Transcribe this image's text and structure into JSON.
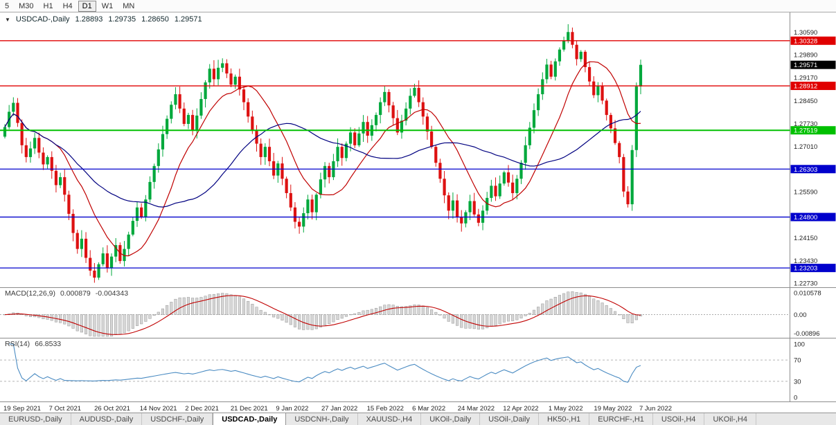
{
  "toolbar": {
    "timeframes": [
      "5",
      "M30",
      "H1",
      "H4",
      "D1",
      "W1",
      "MN"
    ],
    "active": "D1"
  },
  "chart": {
    "title": "USDCAD-,Daily",
    "open": "1.28893",
    "high": "1.29735",
    "low": "1.28650",
    "close": "1.29571",
    "price_axis_ticks": [
      "1.30590",
      "1.29890",
      "1.29170",
      "1.28450",
      "1.27730",
      "1.27010",
      "1.25590",
      "1.24150",
      "1.23430",
      "1.22730"
    ],
    "levels": [
      {
        "price": 1.30328,
        "label": "1.30328",
        "color": "#e00000",
        "width": 1.3
      },
      {
        "price": 1.28912,
        "label": "1.28912",
        "color": "#e00000",
        "width": 1.3
      },
      {
        "price": 1.27519,
        "label": "1.27519",
        "color": "#00c000",
        "width": 2
      },
      {
        "price": 1.26303,
        "label": "1.26303",
        "color": "#0000cc",
        "width": 1.3
      },
      {
        "price": 1.248,
        "label": "1.24800",
        "color": "#0000cc",
        "width": 1.3
      },
      {
        "price": 1.23203,
        "label": "1.23203",
        "color": "#0000cc",
        "width": 1.3
      }
    ],
    "current_price_tag": {
      "price": 1.29571,
      "label": "1.29571",
      "color": "#000000"
    }
  },
  "macd": {
    "name": "MACD(12,26,9)",
    "value_main": "0.000879",
    "value_signal": "-0.004343",
    "axis_ticks": [
      "0.010578",
      "0.00",
      "-0.00896"
    ]
  },
  "rsi": {
    "name": "RSI(14)",
    "value": "66.8533",
    "axis_ticks": [
      "100",
      "70",
      "30",
      "0"
    ]
  },
  "tabs": [
    {
      "label": "EURUSD-,Daily",
      "active": false
    },
    {
      "label": "AUDUSD-,Daily",
      "active": false
    },
    {
      "label": "USDCHF-,Daily",
      "active": false
    },
    {
      "label": "USDCAD-,Daily",
      "active": true
    },
    {
      "label": "USDCNH-,Daily",
      "active": false
    },
    {
      "label": "XAUUSD-,H4",
      "active": false
    },
    {
      "label": "UKOil-,Daily",
      "active": false
    },
    {
      "label": "USOil-,Daily",
      "active": false
    },
    {
      "label": "HK50-,H1",
      "active": false
    },
    {
      "label": "EURCHF-,H1",
      "active": false
    },
    {
      "label": "USOil-,H4",
      "active": false
    },
    {
      "label": "UKOil-,H4",
      "active": false
    }
  ],
  "colors": {
    "candle_up": "#00a83c",
    "candle_down": "#dd1111",
    "ma_fast": "#c00000",
    "ma_slow": "#000080",
    "macd_hist_fill": "#d6d6d6",
    "macd_hist_stroke": "#979797",
    "macd_signal": "#c00000",
    "rsi_line": "#4a8bc2",
    "separator": "#8c8c8c",
    "axis_text": "#1f1f1f"
  },
  "chart_data": {
    "type": "candlestick",
    "symbol": "USDCAD",
    "timeframe": "Daily",
    "dates": [
      "19 Sep 2021",
      "7 Oct 2021",
      "26 Oct 2021",
      "14 Nov 2021",
      "2 Dec 2021",
      "21 Dec 2021",
      "9 Jan 2022",
      "27 Jan 2022",
      "15 Feb 2022",
      "6 Mar 2022",
      "24 Mar 2022",
      "12 Apr 2022",
      "1 May 2022",
      "19 May 2022",
      "7 Jun 2022"
    ],
    "price_range_view": {
      "top": 1.3117,
      "bottom": 1.2262
    },
    "closes": [
      1.2762,
      1.281,
      1.2838,
      1.2775,
      1.2705,
      1.2668,
      1.2695,
      1.2728,
      1.2682,
      1.2645,
      1.2668,
      1.2625,
      1.258,
      1.2605,
      1.255,
      1.249,
      1.243,
      1.238,
      1.2412,
      1.2352,
      1.2312,
      1.229,
      1.2332,
      1.2366,
      1.232,
      1.2356,
      1.2392,
      1.2342,
      1.238,
      1.2425,
      1.2468,
      1.251,
      1.248,
      1.2535,
      1.259,
      1.264,
      1.2692,
      1.274,
      1.2788,
      1.2832,
      1.2865,
      1.282,
      1.2772,
      1.28,
      1.2752,
      1.2798,
      1.285,
      1.2902,
      1.2945,
      1.2912,
      1.2948,
      1.2962,
      1.293,
      1.2895,
      1.292,
      1.288,
      1.284,
      1.2795,
      1.275,
      1.271,
      1.2668,
      1.27,
      1.2655,
      1.261,
      1.2648,
      1.26,
      1.2555,
      1.251,
      1.2465,
      1.245,
      1.2492,
      1.2535,
      1.2495,
      1.255,
      1.2598,
      1.264,
      1.2605,
      1.2655,
      1.27,
      1.2665,
      1.271,
      1.2745,
      1.2705,
      1.2742,
      1.2778,
      1.2735,
      1.2768,
      1.28,
      1.284,
      1.2872,
      1.283,
      1.279,
      1.2745,
      1.2782,
      1.282,
      1.286,
      1.2885,
      1.284,
      1.2795,
      1.2748,
      1.27,
      1.265,
      1.26,
      1.2548,
      1.25,
      1.2532,
      1.248,
      1.246,
      1.2495,
      1.253,
      1.2488,
      1.2462,
      1.25,
      1.254,
      1.2578,
      1.2545,
      1.2585,
      1.262,
      1.2588,
      1.2555,
      1.26,
      1.265,
      1.2705,
      1.276,
      1.2815,
      1.2865,
      1.2912,
      1.2958,
      1.292,
      1.2968,
      1.3005,
      1.3032,
      1.306,
      1.302,
      1.2975,
      1.2998,
      1.295,
      1.2905,
      1.2862,
      1.289,
      1.2845,
      1.28,
      1.2758,
      1.2712,
      1.2668,
      1.256,
      1.252,
      1.269,
      1.28893,
      1.29571
    ],
    "last_candle": {
      "open": 1.28893,
      "high": 1.29735,
      "low": 1.2865,
      "close": 1.29571
    },
    "overlays": [
      {
        "name": "sma-fast",
        "period": 13,
        "color": "#c00000"
      },
      {
        "name": "sma-slow",
        "period": 34,
        "color": "#000080"
      }
    ],
    "macd": {
      "fast": 12,
      "slow": 26,
      "signal": 9,
      "view_min": -0.0105,
      "view_max": 0.0115
    },
    "rsi": {
      "period": 14,
      "levels": [
        70,
        30
      ],
      "range": [
        0,
        100
      ]
    }
  }
}
